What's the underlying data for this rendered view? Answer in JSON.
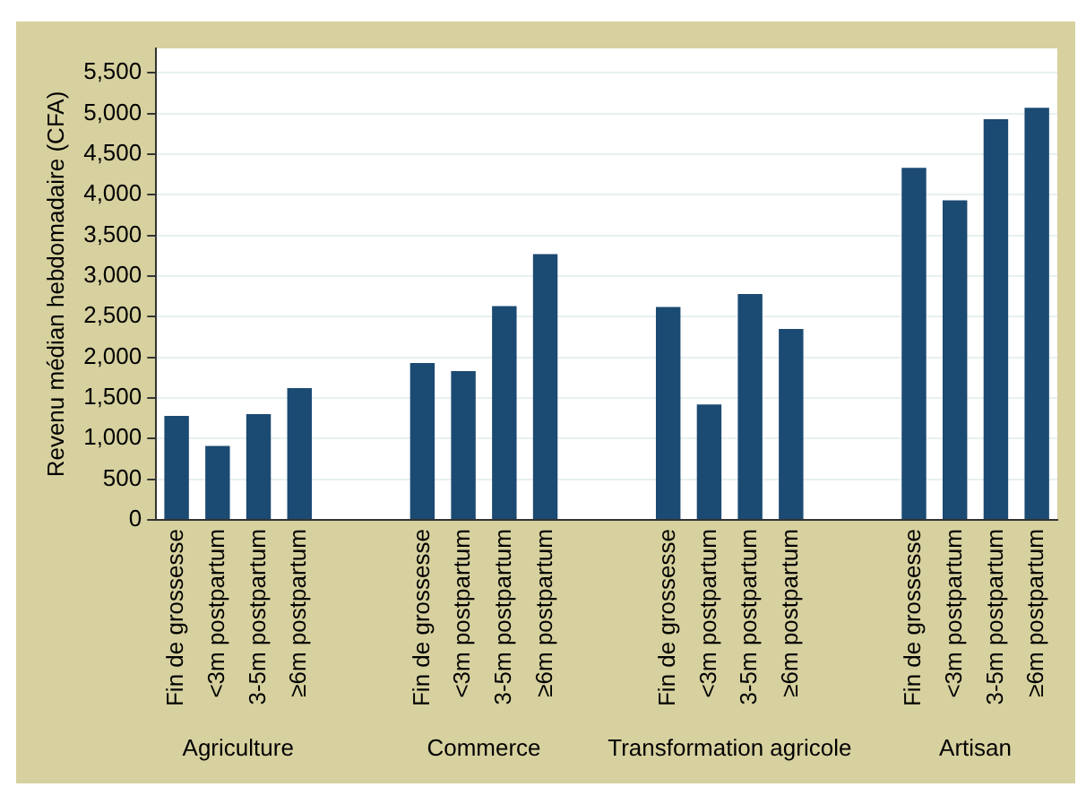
{
  "chart_data": {
    "type": "bar",
    "ylabel": "Revenu médian hebdomadaire (CFA)",
    "categories": [
      "Fin de grossesse",
      "<3m postpartum",
      "3-5m postpartum",
      "≥6m postpartum",
      null,
      null,
      "Fin de grossesse",
      "<3m postpartum",
      "3-5m postpartum",
      "≥6m postpartum",
      null,
      null,
      "Fin de grossesse",
      "<3m postpartum",
      "3-5m postpartum",
      "≥6m postpartum",
      null,
      null,
      "Fin de grossesse",
      "<3m postpartum",
      "3-5m postpartum",
      "≥6m postpartum"
    ],
    "values": [
      1280,
      910,
      1300,
      1620,
      null,
      null,
      1930,
      1830,
      2630,
      3270,
      null,
      null,
      2620,
      1420,
      2780,
      2350,
      null,
      null,
      4330,
      3930,
      4930,
      5070
    ],
    "color": "#1b4a72",
    "annotations": [
      "Agriculture",
      "Commerce",
      "Transformation agricole",
      "Artisan"
    ],
    "ylim": [
      0,
      5800
    ],
    "yticks": [
      0,
      500,
      {
        "value": 1000,
        "label": "1,000"
      },
      {
        "value": 1500,
        "label": "1,500"
      },
      {
        "value": 2000,
        "label": "2,000"
      },
      {
        "value": 2500,
        "label": "2,500"
      },
      {
        "value": 3000,
        "label": "3,000"
      },
      {
        "value": 3500,
        "label": "3,500"
      },
      {
        "value": 4000,
        "label": "4,000"
      },
      {
        "value": 4500,
        "label": "4,500"
      },
      {
        "value": 5000,
        "label": "5,000"
      },
      {
        "value": 5500,
        "label": "5,500"
      }
    ],
    "grid": "y",
    "legend": false
  }
}
